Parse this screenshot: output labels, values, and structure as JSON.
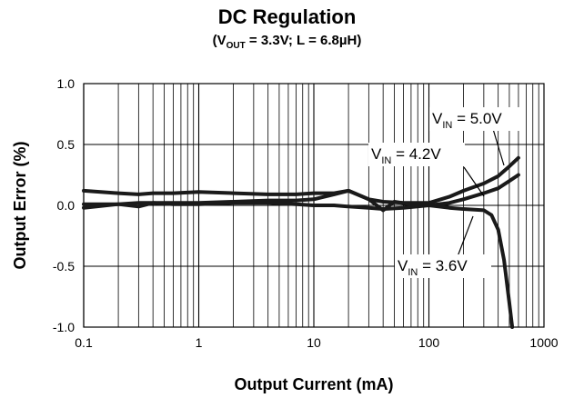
{
  "chart_data": {
    "type": "line",
    "title": "DC Regulation",
    "subtitle": {
      "open": "(V",
      "sub": "OUT",
      "rest": " = 3.3V; L = 6.8µH)"
    },
    "xlabel": "Output Current (mA)",
    "ylabel": "Output Error (%)",
    "xscale": "log",
    "xlim": [
      0.1,
      1000
    ],
    "ylim": [
      -1.0,
      1.0
    ],
    "x_ticks": [
      "0.1",
      "1",
      "10",
      "100",
      "1000"
    ],
    "y_ticks": [
      "1.0",
      "0.5",
      "0.0",
      "-0.5",
      "-1.0"
    ],
    "grid": true,
    "series": [
      {
        "name": "VIN = 5.0V",
        "label_main": "V",
        "label_sub": "IN",
        "label_rest": " = 5.0V",
        "x": [
          0.1,
          0.2,
          0.3,
          0.4,
          0.6,
          1,
          2,
          4,
          7,
          10,
          15,
          20,
          30,
          40,
          60,
          100,
          150,
          200,
          300,
          400,
          500,
          600
        ],
        "y": [
          0.12,
          0.1,
          0.09,
          0.1,
          0.1,
          0.11,
          0.1,
          0.09,
          0.09,
          0.1,
          0.1,
          0.12,
          0.05,
          0.03,
          0.02,
          0.02,
          0.07,
          0.12,
          0.18,
          0.24,
          0.32,
          0.39
        ]
      },
      {
        "name": "VIN = 4.2V",
        "label_main": "V",
        "label_sub": "IN",
        "label_rest": " = 4.2V",
        "x": [
          0.1,
          0.2,
          0.3,
          0.4,
          0.6,
          1,
          2,
          4,
          7,
          10,
          15,
          20,
          30,
          40,
          50,
          70,
          100,
          150,
          200,
          300,
          400,
          500,
          600
        ],
        "y": [
          -0.02,
          0.01,
          0.02,
          0.02,
          0.02,
          0.02,
          0.03,
          0.04,
          0.04,
          0.05,
          0.09,
          0.12,
          0.05,
          -0.04,
          0.03,
          0.01,
          0.0,
          0.02,
          0.05,
          0.1,
          0.14,
          0.2,
          0.25
        ]
      },
      {
        "name": "VIN = 3.6V",
        "label_main": "V",
        "label_sub": "IN",
        "label_rest": " = 3.6V",
        "x": [
          0.1,
          0.2,
          0.3,
          0.4,
          0.6,
          1,
          2,
          4,
          7,
          10,
          15,
          20,
          30,
          40,
          60,
          100,
          150,
          200,
          300,
          350,
          400,
          450,
          500,
          530
        ],
        "y": [
          0.01,
          0.01,
          -0.01,
          0.02,
          0.01,
          0.01,
          0.02,
          0.02,
          0.01,
          0.0,
          0.0,
          -0.01,
          -0.02,
          -0.03,
          -0.02,
          0.0,
          -0.02,
          -0.03,
          -0.04,
          -0.08,
          -0.2,
          -0.45,
          -0.8,
          -1.0
        ]
      }
    ]
  }
}
